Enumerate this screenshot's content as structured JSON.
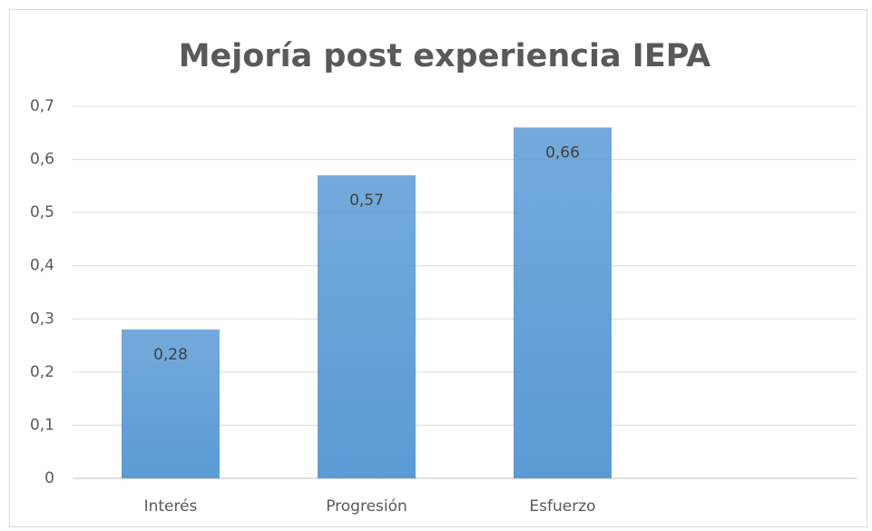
{
  "chart_data": {
    "type": "bar",
    "title": "Mejoría post experiencia IEPA",
    "categories": [
      "Interés",
      "Progresión",
      "Esfuerzo",
      null
    ],
    "values": [
      0.28,
      0.57,
      0.66,
      null
    ],
    "value_labels": [
      "0,28",
      "0,57",
      "0,66",
      null
    ],
    "color": "#5b9bd5",
    "ylim": [
      0,
      0.7
    ],
    "yticks": [
      0,
      {
        "value": 0.1,
        "label": "0,1"
      },
      {
        "value": 0.2,
        "label": "0,2"
      },
      {
        "value": 0.3,
        "label": "0,3"
      },
      {
        "value": 0.4,
        "label": "0,4"
      },
      {
        "value": 0.5,
        "label": "0,5"
      },
      {
        "value": 0.6,
        "label": "0,6"
      },
      {
        "value": 0.7,
        "label": "0,7"
      }
    ],
    "grid": true
  }
}
